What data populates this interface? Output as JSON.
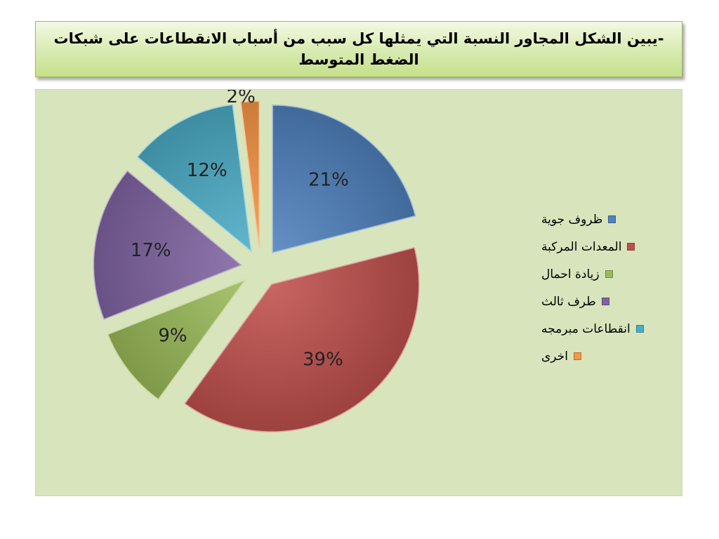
{
  "title": "-يبين الشكل المجاور النسبة التي يمثلها كل سبب من أسباب الانقطاعات على شبكات الضغط المتوسط",
  "chart_data": {
    "type": "pie",
    "exploded": true,
    "legend_position": "right",
    "categories": [
      "ظروف جوية",
      "المعدات المركبة",
      "زيادة احمال",
      "طرف ثالث",
      "انقطاعات مبرمجه",
      "اخرى"
    ],
    "values": [
      21,
      39,
      9,
      17,
      12,
      2
    ],
    "data_labels": [
      "21%",
      "39%",
      "9%",
      "17%",
      "12%",
      "2%"
    ],
    "colors": [
      "#4f81bd",
      "#c0504d",
      "#9bbb59",
      "#8064a2",
      "#4bacc6",
      "#f79646"
    ]
  }
}
